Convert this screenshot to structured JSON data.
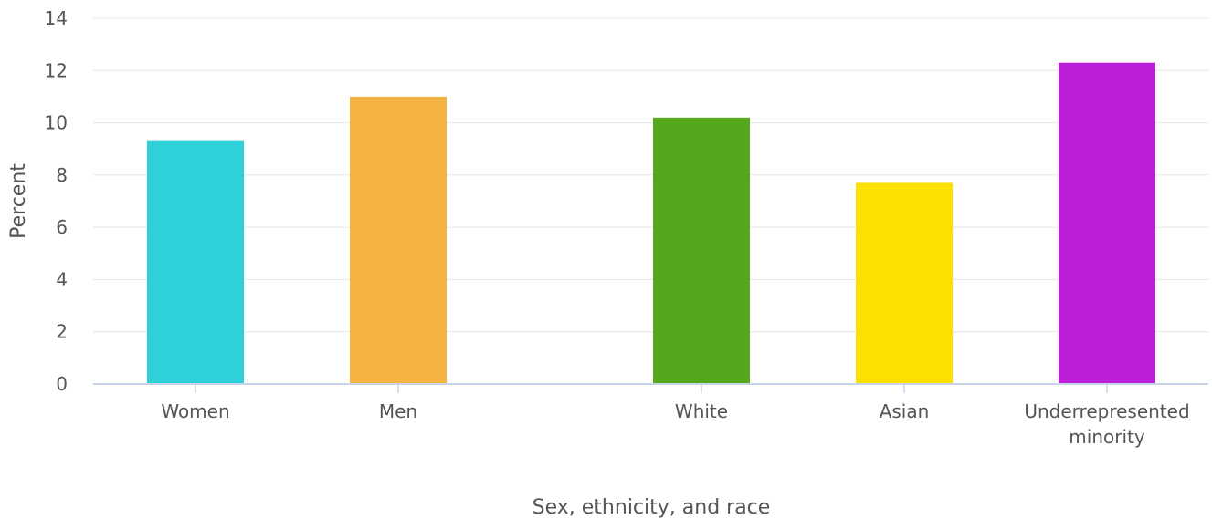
{
  "chart_data": {
    "type": "bar",
    "title": "",
    "xlabel": "Sex, ethnicity, and race",
    "ylabel": "Percent",
    "ylim": [
      0,
      14
    ],
    "yticks": [
      0,
      2,
      4,
      6,
      8,
      10,
      12,
      14
    ],
    "grid": true,
    "legend": "none",
    "categories": [
      {
        "label": [
          "Women"
        ],
        "value": 9.3,
        "color": "#2ed1d9"
      },
      {
        "label": [
          "Men"
        ],
        "value": 11.0,
        "color": "#f5b341"
      },
      {
        "label": [
          "White"
        ],
        "value": 10.2,
        "color": "#55a71b"
      },
      {
        "label": [
          "Asian"
        ],
        "value": 7.7,
        "color": "#fbe000"
      },
      {
        "label": [
          "Underrepresented",
          "minority"
        ],
        "value": 12.3,
        "color": "#bb1fd8"
      }
    ]
  }
}
